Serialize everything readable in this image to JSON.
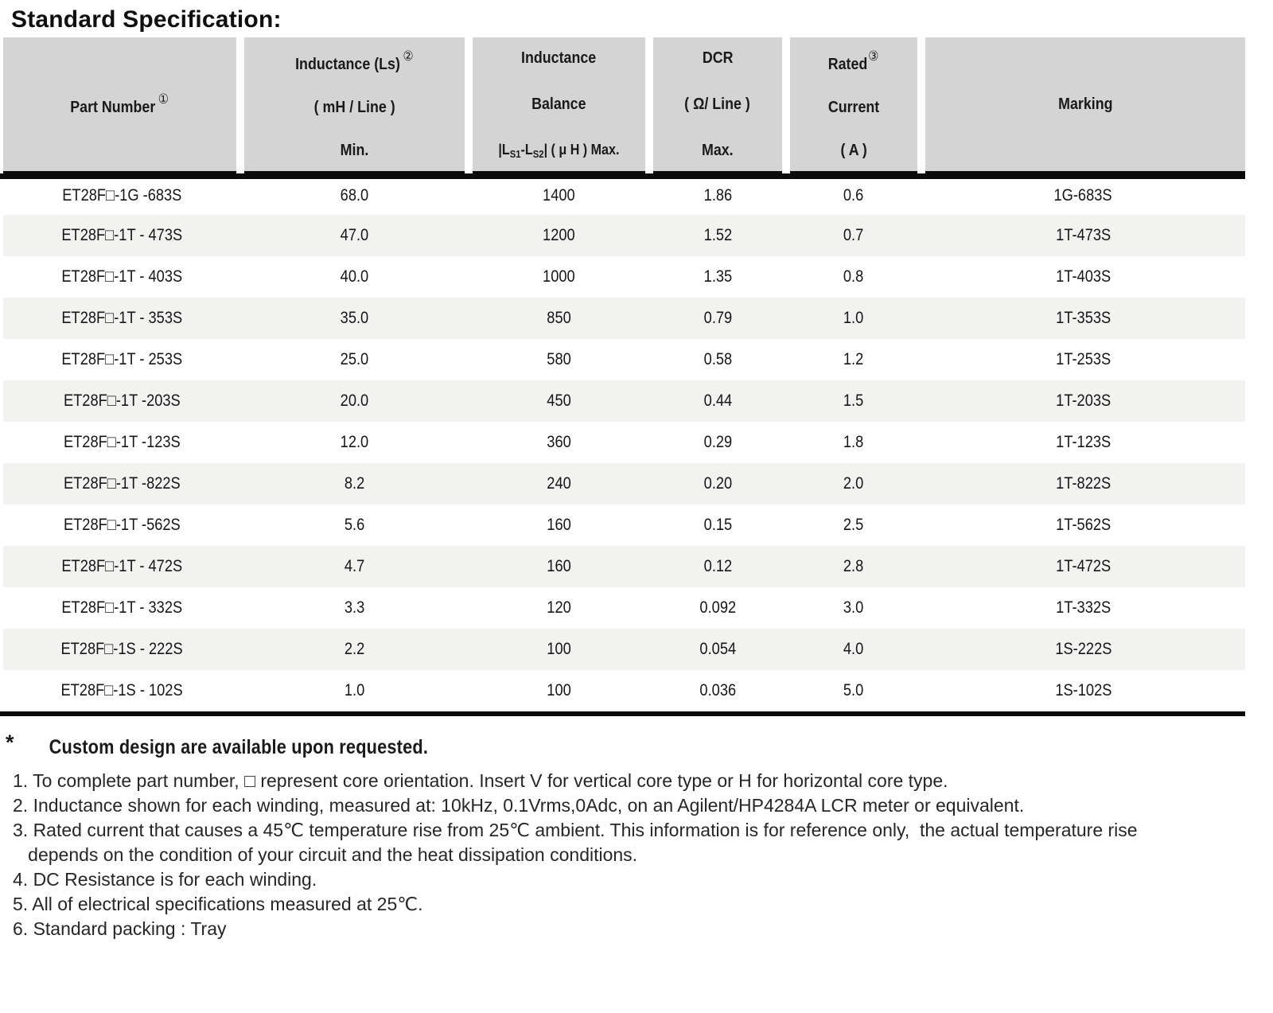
{
  "page": {
    "title": "Standard Specification:"
  },
  "table": {
    "header": {
      "part_number": {
        "label": "Part Number",
        "sup": "①"
      },
      "inductance": {
        "line1": "Inductance (Ls)",
        "sup": "②",
        "line2": "( mH / Line )",
        "line3": "Min."
      },
      "balance": {
        "line1": "Inductance",
        "line2": "Balance",
        "line3_parts": {
          "p1": "|L",
          "s1": "S1",
          "p2": "-L",
          "s2": "S2",
          "p3": "| ( μ H ) Max."
        }
      },
      "dcr": {
        "line1": "DCR",
        "line2": "( Ω/ Line )",
        "line3": "Max."
      },
      "rated": {
        "line1": "Rated",
        "sup": "③",
        "line2": "Current",
        "line3": "( A )"
      },
      "marking": {
        "label": "Marking"
      }
    },
    "col_names": [
      "cell-part-number",
      "cell-inductance-min",
      "cell-inductance-balance",
      "cell-dcr-max",
      "cell-rated-current",
      "cell-marking"
    ],
    "rows": [
      [
        "ET28F□-1G -683S",
        "68.0",
        "1400",
        "1.86",
        "0.6",
        "1G-683S"
      ],
      [
        "ET28F□-1T - 473S",
        "47.0",
        "1200",
        "1.52",
        "0.7",
        "1T-473S"
      ],
      [
        "ET28F□-1T - 403S",
        "40.0",
        "1000",
        "1.35",
        "0.8",
        "1T-403S"
      ],
      [
        "ET28F□-1T - 353S",
        "35.0",
        "850",
        "0.79",
        "1.0",
        "1T-353S"
      ],
      [
        "ET28F□-1T - 253S",
        "25.0",
        "580",
        "0.58",
        "1.2",
        "1T-253S"
      ],
      [
        "ET28F□-1T -203S",
        "20.0",
        "450",
        "0.44",
        "1.5",
        "1T-203S"
      ],
      [
        "ET28F□-1T -123S",
        "12.0",
        "360",
        "0.29",
        "1.8",
        "1T-123S"
      ],
      [
        "ET28F□-1T -822S",
        "8.2",
        "240",
        "0.20",
        "2.0",
        "1T-822S"
      ],
      [
        "ET28F□-1T -562S",
        "5.6",
        "160",
        "0.15",
        "2.5",
        "1T-562S"
      ],
      [
        "ET28F□-1T - 472S",
        "4.7",
        "160",
        "0.12",
        "2.8",
        "1T-472S"
      ],
      [
        "ET28F□-1T - 332S",
        "3.3",
        "120",
        "0.092",
        "3.0",
        "1T-332S"
      ],
      [
        "ET28F□-1S - 222S",
        "2.2",
        "100",
        "0.054",
        "4.0",
        "1S-222S"
      ],
      [
        "ET28F□-1S - 102S",
        "1.0",
        "100",
        "0.036",
        "5.0",
        "1S-102S"
      ]
    ]
  },
  "notes": {
    "star": "*",
    "custom": "Custom design are available upon requested.",
    "items": [
      "1. To complete part number, □ represent core orientation. Insert V for vertical core type or H for horizontal core type.",
      "2. Inductance shown for each winding, measured at: 10kHz, 0.1Vrms,0Adc, on an Agilent/HP4284A LCR meter or equivalent.",
      "3. Rated current that causes a 45℃ temperature rise from 25℃ ambient. This information is for reference only,  the actual temperature rise",
      "   depends on the condition of your circuit and the heat dissipation conditions.",
      "4. DC Resistance is for each winding.",
      "5. All of electrical specifications measured at 25℃.",
      "6. Standard packing : Tray"
    ]
  },
  "colors": {
    "header_bg": "#d4d4d4",
    "row_alt_bg": "#f2f2f1",
    "rule": "#0a0a0a"
  }
}
